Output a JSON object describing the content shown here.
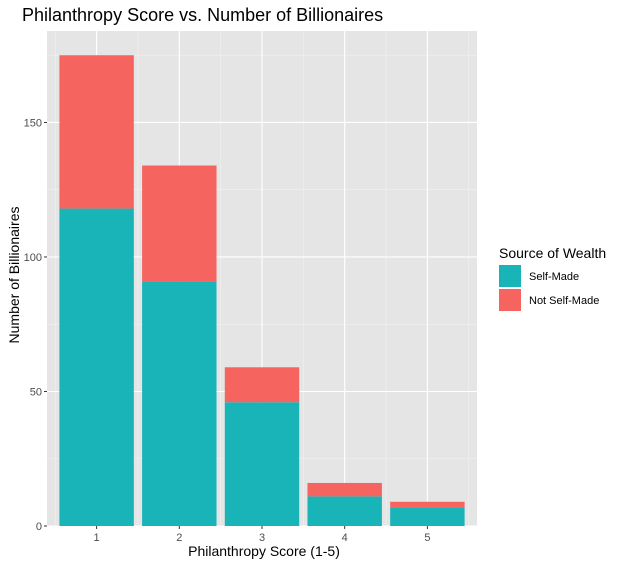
{
  "chart_data": {
    "type": "bar",
    "stacked": true,
    "title": "Philanthropy Score vs. Number of Billionaires",
    "xlabel": "Philanthropy Score (1-5)",
    "ylabel": "Number of Billionaires",
    "categories": [
      "1",
      "2",
      "3",
      "4",
      "5"
    ],
    "series": [
      {
        "name": "Self-Made",
        "color": "#19B4B8",
        "values": [
          118,
          91,
          46,
          11,
          7
        ]
      },
      {
        "name": "Not Self-Made",
        "color": "#F6645F",
        "values": [
          57,
          43,
          13,
          5,
          2
        ]
      }
    ],
    "ylim": [
      0,
      184
    ],
    "yticks": [
      0,
      50,
      100,
      150
    ],
    "ytick_labels": [
      "0",
      "50",
      "100",
      "150"
    ],
    "grid": true,
    "legend": {
      "title": "Source of Wealth",
      "placement": "right",
      "entries": [
        "Self-Made",
        "Not Self-Made"
      ]
    },
    "colors": {
      "panel_bg": "#E5E5E5",
      "grid_major": "#ffffff",
      "grid_minor": "#F2F2F2"
    }
  }
}
